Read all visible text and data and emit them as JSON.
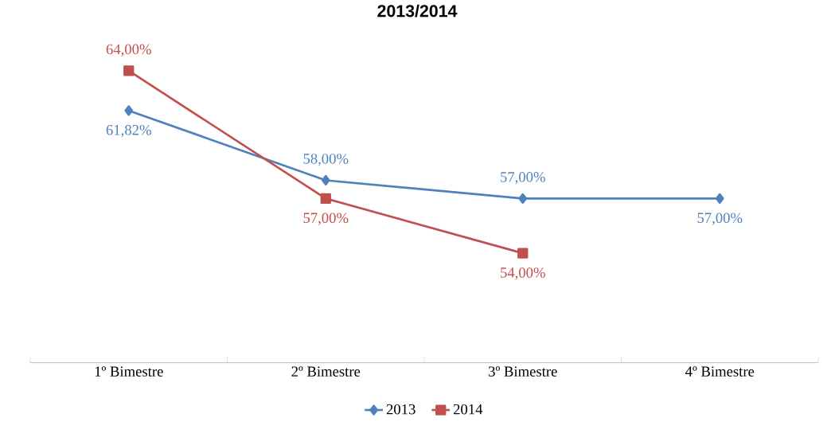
{
  "chart_data": {
    "type": "line",
    "title": "2013/2014",
    "categories": [
      "1º Bimestre",
      "2º Bimestre",
      "3º Bimestre",
      "4º Bimestre"
    ],
    "series": [
      {
        "name": "2013",
        "color": "#4f81bd",
        "marker": "diamond",
        "values": [
          61.82,
          58,
          57,
          57
        ],
        "value_labels": [
          "61,82%",
          "58,00%",
          "57,00%",
          "57,00%"
        ]
      },
      {
        "name": "2014",
        "color": "#c0504d",
        "marker": "square",
        "values": [
          64,
          57,
          54,
          null
        ],
        "value_labels": [
          "64,00%",
          "57,00%",
          "54,00%",
          null
        ]
      }
    ],
    "legend": "bottom"
  }
}
